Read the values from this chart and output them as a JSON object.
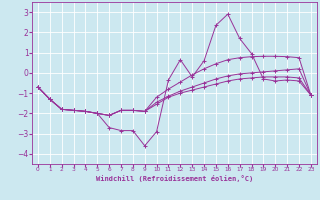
{
  "xlabel": "Windchill (Refroidissement éolien,°C)",
  "background_color": "#cce8f0",
  "line_color": "#993399",
  "grid_color": "#ffffff",
  "xlim": [
    -0.5,
    23.5
  ],
  "ylim": [
    -4.5,
    3.5
  ],
  "yticks": [
    -4,
    -3,
    -2,
    -1,
    0,
    1,
    2,
    3
  ],
  "xticks": [
    0,
    1,
    2,
    3,
    4,
    5,
    6,
    7,
    8,
    9,
    10,
    11,
    12,
    13,
    14,
    15,
    16,
    17,
    18,
    19,
    20,
    21,
    22,
    23
  ],
  "series": [
    [
      [
        0,
        -0.7
      ],
      [
        1,
        -1.3
      ],
      [
        2,
        -1.8
      ],
      [
        3,
        -1.85
      ],
      [
        4,
        -1.9
      ],
      [
        5,
        -2.0
      ],
      [
        6,
        -2.7
      ],
      [
        7,
        -2.85
      ],
      [
        8,
        -2.85
      ],
      [
        9,
        -3.6
      ],
      [
        10,
        -2.9
      ],
      [
        11,
        -0.35
      ],
      [
        12,
        0.65
      ],
      [
        13,
        -0.2
      ],
      [
        14,
        0.6
      ],
      [
        15,
        2.35
      ],
      [
        16,
        2.9
      ],
      [
        17,
        1.7
      ],
      [
        18,
        0.95
      ],
      [
        19,
        -0.3
      ],
      [
        20,
        -0.4
      ],
      [
        21,
        -0.35
      ],
      [
        22,
        -0.4
      ],
      [
        23,
        -1.1
      ]
    ],
    [
      [
        0,
        -0.7
      ],
      [
        1,
        -1.3
      ],
      [
        2,
        -1.8
      ],
      [
        3,
        -1.85
      ],
      [
        4,
        -1.9
      ],
      [
        5,
        -2.0
      ],
      [
        6,
        -2.1
      ],
      [
        7,
        -1.85
      ],
      [
        8,
        -1.85
      ],
      [
        9,
        -1.9
      ],
      [
        10,
        -1.55
      ],
      [
        11,
        -1.2
      ],
      [
        12,
        -1.0
      ],
      [
        13,
        -0.85
      ],
      [
        14,
        -0.7
      ],
      [
        15,
        -0.55
      ],
      [
        16,
        -0.4
      ],
      [
        17,
        -0.3
      ],
      [
        18,
        -0.25
      ],
      [
        19,
        -0.2
      ],
      [
        20,
        -0.2
      ],
      [
        21,
        -0.2
      ],
      [
        22,
        -0.25
      ],
      [
        23,
        -1.1
      ]
    ],
    [
      [
        0,
        -0.7
      ],
      [
        1,
        -1.3
      ],
      [
        2,
        -1.8
      ],
      [
        3,
        -1.85
      ],
      [
        4,
        -1.9
      ],
      [
        5,
        -2.0
      ],
      [
        6,
        -2.1
      ],
      [
        7,
        -1.85
      ],
      [
        8,
        -1.85
      ],
      [
        9,
        -1.9
      ],
      [
        10,
        -1.45
      ],
      [
        11,
        -1.15
      ],
      [
        12,
        -0.9
      ],
      [
        13,
        -0.7
      ],
      [
        14,
        -0.5
      ],
      [
        15,
        -0.3
      ],
      [
        16,
        -0.15
      ],
      [
        17,
        -0.05
      ],
      [
        18,
        0.0
      ],
      [
        19,
        0.05
      ],
      [
        20,
        0.1
      ],
      [
        21,
        0.15
      ],
      [
        22,
        0.2
      ],
      [
        23,
        -1.1
      ]
    ],
    [
      [
        0,
        -0.7
      ],
      [
        1,
        -1.3
      ],
      [
        2,
        -1.8
      ],
      [
        3,
        -1.85
      ],
      [
        4,
        -1.9
      ],
      [
        5,
        -2.0
      ],
      [
        6,
        -2.1
      ],
      [
        7,
        -1.85
      ],
      [
        8,
        -1.85
      ],
      [
        9,
        -1.9
      ],
      [
        10,
        -1.2
      ],
      [
        11,
        -0.8
      ],
      [
        12,
        -0.45
      ],
      [
        13,
        -0.1
      ],
      [
        14,
        0.2
      ],
      [
        15,
        0.45
      ],
      [
        16,
        0.65
      ],
      [
        17,
        0.75
      ],
      [
        18,
        0.8
      ],
      [
        19,
        0.82
      ],
      [
        20,
        0.82
      ],
      [
        21,
        0.8
      ],
      [
        22,
        0.75
      ],
      [
        23,
        -1.1
      ]
    ]
  ]
}
